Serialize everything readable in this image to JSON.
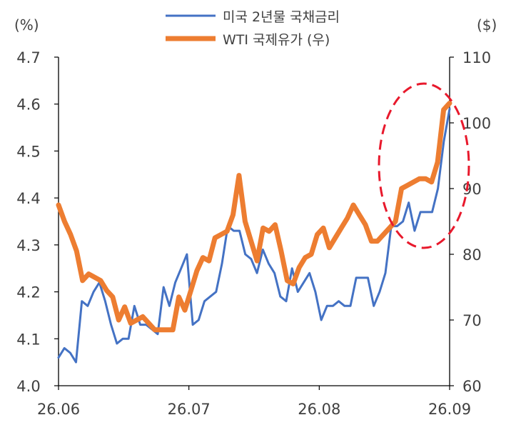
{
  "chart_data": {
    "type": "line",
    "left_axis": {
      "unit_label": "(%)",
      "ylim": [
        4.0,
        4.7
      ],
      "ticks": [
        "4.0",
        "4.1",
        "4.2",
        "4.3",
        "4.4",
        "4.5",
        "4.6",
        "4.7"
      ]
    },
    "right_axis": {
      "unit_label": "($)",
      "ylim": [
        60,
        110
      ],
      "ticks": [
        "60",
        "70",
        "80",
        "90",
        "100",
        "110"
      ]
    },
    "x_ticks": [
      "26.06",
      "26.07",
      "26.08",
      "26.09"
    ],
    "grid": false,
    "legend_position": "top",
    "series": [
      {
        "name": "미국 2년물 국채금리",
        "axis": "left",
        "color": "#4472C4",
        "values": [
          4.06,
          4.08,
          4.07,
          4.05,
          4.18,
          4.17,
          4.2,
          4.22,
          4.18,
          4.13,
          4.09,
          4.1,
          4.1,
          4.17,
          4.13,
          4.13,
          4.12,
          4.11,
          4.21,
          4.17,
          4.22,
          4.25,
          4.28,
          4.13,
          4.14,
          4.18,
          4.19,
          4.2,
          4.26,
          4.34,
          4.33,
          4.33,
          4.28,
          4.27,
          4.24,
          4.29,
          4.26,
          4.24,
          4.19,
          4.18,
          4.25,
          4.2,
          4.22,
          4.24,
          4.2,
          4.14,
          4.17,
          4.17,
          4.18,
          4.17,
          4.17,
          4.23,
          4.23,
          4.23,
          4.17,
          4.2,
          4.24,
          4.34,
          4.34,
          4.35,
          4.39,
          4.33,
          4.37,
          4.37,
          4.37,
          4.42,
          4.52,
          4.59
        ]
      },
      {
        "name": "WTI 국제유가 (우)",
        "axis": "right",
        "color": "#ED7D31",
        "values": [
          87.5,
          85,
          83,
          80.5,
          76,
          77,
          76.5,
          76,
          74.5,
          73.5,
          70,
          72,
          69.5,
          70,
          70.5,
          69.5,
          68.5,
          68.5,
          68.5,
          68.5,
          73.5,
          71.5,
          74.5,
          77.5,
          79.5,
          79,
          82.5,
          83,
          83.5,
          86,
          92,
          85,
          82,
          79,
          84,
          83.5,
          84.5,
          80.5,
          76,
          75.5,
          78,
          79.5,
          80,
          83,
          84,
          81,
          82.5,
          84,
          85.5,
          87.5,
          86,
          84.5,
          82,
          82,
          83,
          84,
          85,
          90,
          90.5,
          91,
          91.5,
          91.5,
          91,
          94,
          102,
          103
        ]
      }
    ],
    "annotation": {
      "type": "dashed-ellipse",
      "color": "#E8192C",
      "note": ""
    }
  }
}
